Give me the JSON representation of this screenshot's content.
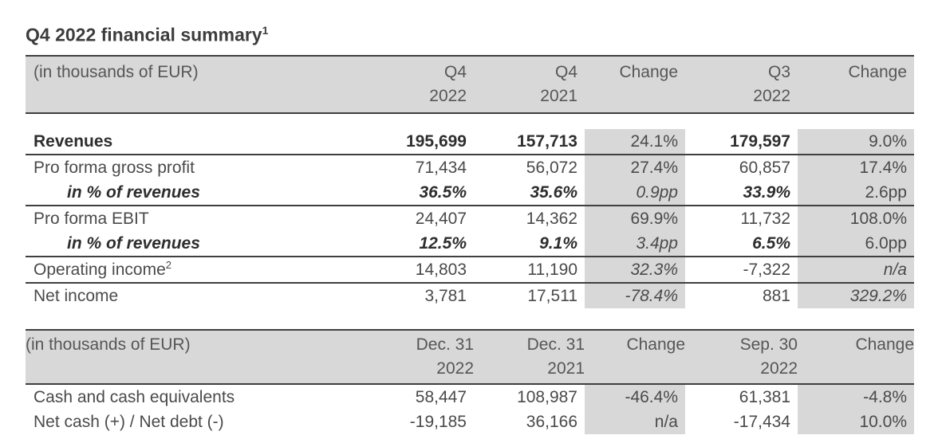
{
  "title": {
    "text": "Q4 2022 financial summary",
    "sup": "1"
  },
  "colors": {
    "shade": "#d8d8d8",
    "rule": "#3f3f3f",
    "text": "#4a4a4a",
    "text_strong": "#2e2e2e",
    "header_text": "#565656",
    "title_text": "#3d3d3d",
    "background": "#ffffff"
  },
  "table1": {
    "unit_label": "(in thousands of EUR)",
    "columns": [
      {
        "line1": "Q4",
        "line2": "2022"
      },
      {
        "line1": "Q4",
        "line2": "2021"
      },
      {
        "line1": "Change",
        "line2": ""
      },
      {
        "line1": "Q3",
        "line2": "2022"
      },
      {
        "line1": "Change",
        "line2": ""
      }
    ],
    "rows": [
      {
        "label": "Revenues",
        "sup": "",
        "label_style": "bold",
        "indent": false,
        "rule_below": true,
        "cells": [
          {
            "text": "195,699",
            "style": "bold"
          },
          {
            "text": "157,713",
            "style": "bold"
          },
          {
            "text": "24.1%",
            "style": "regular"
          },
          {
            "text": "179,597",
            "style": "bold"
          },
          {
            "text": "9.0%",
            "style": "regular"
          }
        ]
      },
      {
        "label": "Pro forma gross profit",
        "sup": "",
        "label_style": "regular",
        "indent": false,
        "rule_below": false,
        "cells": [
          {
            "text": "71,434",
            "style": "regular"
          },
          {
            "text": "56,072",
            "style": "regular"
          },
          {
            "text": "27.4%",
            "style": "regular"
          },
          {
            "text": "60,857",
            "style": "regular"
          },
          {
            "text": "17.4%",
            "style": "regular"
          }
        ]
      },
      {
        "label": "in % of revenues",
        "sup": "",
        "label_style": "bold-italic",
        "indent": true,
        "rule_below": true,
        "cells": [
          {
            "text": "36.5%",
            "style": "bold-italic"
          },
          {
            "text": "35.6%",
            "style": "bold-italic"
          },
          {
            "text": "0.9pp",
            "style": "italic"
          },
          {
            "text": "33.9%",
            "style": "bold-italic"
          },
          {
            "text": "2.6pp",
            "style": "regular"
          }
        ]
      },
      {
        "label": "Pro forma EBIT",
        "sup": "",
        "label_style": "regular",
        "indent": false,
        "rule_below": false,
        "cells": [
          {
            "text": "24,407",
            "style": "regular"
          },
          {
            "text": "14,362",
            "style": "regular"
          },
          {
            "text": "69.9%",
            "style": "regular"
          },
          {
            "text": "11,732",
            "style": "regular"
          },
          {
            "text": "108.0%",
            "style": "regular"
          }
        ]
      },
      {
        "label": "in % of revenues",
        "sup": "",
        "label_style": "bold-italic",
        "indent": true,
        "rule_below": true,
        "cells": [
          {
            "text": "12.5%",
            "style": "bold-italic"
          },
          {
            "text": "9.1%",
            "style": "bold-italic"
          },
          {
            "text": "3.4pp",
            "style": "italic"
          },
          {
            "text": "6.5%",
            "style": "bold-italic"
          },
          {
            "text": "6.0pp",
            "style": "regular"
          }
        ]
      },
      {
        "label": "Operating income",
        "sup": "2",
        "label_style": "regular",
        "indent": false,
        "rule_below": true,
        "cells": [
          {
            "text": "14,803",
            "style": "regular"
          },
          {
            "text": "11,190",
            "style": "regular"
          },
          {
            "text": "32.3%",
            "style": "italic"
          },
          {
            "text": "-7,322",
            "style": "regular"
          },
          {
            "text": "n/a",
            "style": "italic"
          }
        ]
      },
      {
        "label": "Net income",
        "sup": "",
        "label_style": "regular",
        "indent": false,
        "rule_below": false,
        "cells": [
          {
            "text": "3,781",
            "style": "regular"
          },
          {
            "text": "17,511",
            "style": "regular"
          },
          {
            "text": "-78.4%",
            "style": "italic"
          },
          {
            "text": "881",
            "style": "regular"
          },
          {
            "text": "329.2%",
            "style": "italic"
          }
        ]
      }
    ]
  },
  "table2": {
    "unit_label": "(in thousands of EUR)",
    "columns": [
      {
        "line1": "Dec. 31",
        "line2": "2022"
      },
      {
        "line1": "Dec. 31",
        "line2": "2021"
      },
      {
        "line1": "Change",
        "line2": ""
      },
      {
        "line1": "Sep. 30",
        "line2": "2022"
      },
      {
        "line1": "Change",
        "line2": ""
      }
    ],
    "rows": [
      {
        "label": "Cash and cash equivalents",
        "sup": "",
        "label_style": "regular",
        "indent": false,
        "rule_below": false,
        "cells": [
          {
            "text": "58,447",
            "style": "regular"
          },
          {
            "text": "108,987",
            "style": "regular"
          },
          {
            "text": "-46.4%",
            "style": "regular"
          },
          {
            "text": "61,381",
            "style": "regular"
          },
          {
            "text": "-4.8%",
            "style": "regular"
          }
        ]
      },
      {
        "label": "Net cash (+) / Net debt (-)",
        "sup": "",
        "label_style": "regular",
        "indent": false,
        "rule_below": false,
        "cells": [
          {
            "text": "-19,185",
            "style": "regular"
          },
          {
            "text": "36,166",
            "style": "regular"
          },
          {
            "text": "n/a",
            "style": "regular"
          },
          {
            "text": "-17,434",
            "style": "regular"
          },
          {
            "text": "10.0%",
            "style": "regular"
          }
        ]
      }
    ]
  }
}
